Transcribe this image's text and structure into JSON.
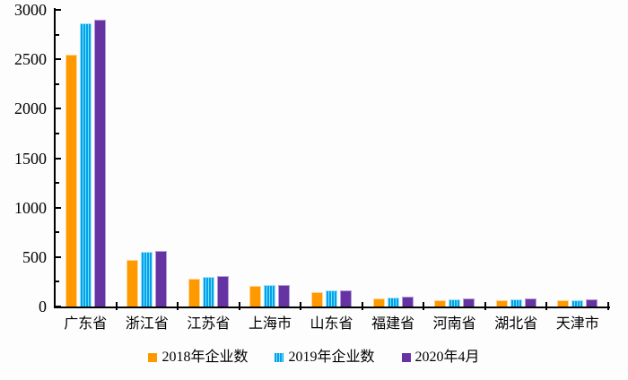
{
  "page": {
    "background": "#fdfdfd",
    "axis_color": "#000000",
    "text_color": "#000000"
  },
  "chart_data": {
    "type": "bar",
    "title": "",
    "xlabel": "",
    "ylabel": "",
    "categories": [
      "广东省",
      "浙江省",
      "江苏省",
      "上海市",
      "山东省",
      "福建省",
      "河南省",
      "湖北省",
      "天津市"
    ],
    "series": [
      {
        "name": "2018年企业数",
        "color": "#FF9900",
        "border": "#FFD699",
        "pattern": "solid",
        "values": [
          2550,
          470,
          280,
          210,
          145,
          80,
          62,
          65,
          65
        ]
      },
      {
        "name": "2019年企业数",
        "color": "#00A3E8",
        "stripe": "#7FDBFF",
        "border": "#9FE4FB",
        "pattern": "vertical-stripes",
        "values": [
          2860,
          550,
          300,
          215,
          160,
          90,
          70,
          72,
          60
        ]
      },
      {
        "name": "2020年4月",
        "color": "#6633A3",
        "border": "#B39DDB",
        "pattern": "solid",
        "values": [
          2900,
          560,
          310,
          220,
          165,
          100,
          85,
          82,
          75
        ]
      }
    ],
    "ylim": [
      0,
      3000
    ],
    "y_major_step": 500,
    "y_minor_step": 250,
    "y_tick_labels": [
      "0",
      "500",
      "1000",
      "1500",
      "2000",
      "2500",
      "3000"
    ],
    "grid": false,
    "legend_position": "bottom"
  }
}
